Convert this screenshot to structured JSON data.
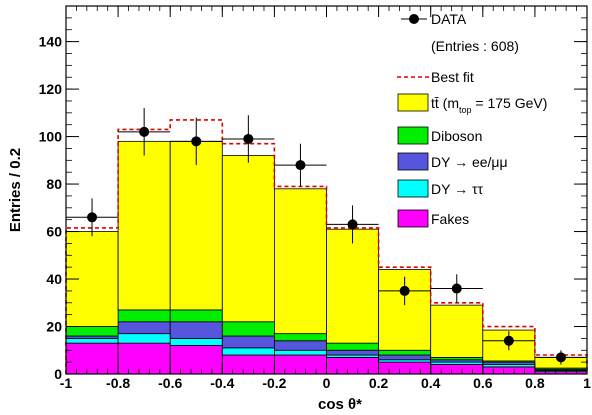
{
  "chart_data": {
    "type": "bar",
    "title": "",
    "xlabel": "cos θ*",
    "ylabel": "Entries / 0.2",
    "xlim": [
      -1,
      1
    ],
    "ylim": [
      0,
      155
    ],
    "x_ticks": [
      -1,
      -0.8,
      -0.6,
      -0.4,
      -0.2,
      0,
      0.2,
      0.4,
      0.6,
      0.8,
      1
    ],
    "x_tick_labels": [
      "-1",
      "-0.8",
      "-0.6",
      "-0.4",
      "-0.2",
      "0",
      "0.2",
      "0.4",
      "0.6",
      "0.8",
      "1"
    ],
    "y_ticks": [
      0,
      20,
      40,
      60,
      80,
      100,
      120,
      140
    ],
    "y_tick_labels": [
      "0",
      "20",
      "40",
      "60",
      "80",
      "100",
      "120",
      "140"
    ],
    "bin_edges": [
      -1,
      -0.8,
      -0.6,
      -0.4,
      -0.2,
      0,
      0.2,
      0.4,
      0.6,
      0.8,
      1
    ],
    "stacked_series": [
      {
        "name": "Fakes",
        "color": "#ff00ff",
        "values": [
          13,
          13,
          12,
          8,
          8,
          7,
          5,
          4,
          3,
          1
        ]
      },
      {
        "name": "DY → ττ",
        "color": "#00ffff",
        "values": [
          2,
          4,
          3,
          3,
          2,
          1,
          1,
          1,
          1,
          0.5
        ]
      },
      {
        "name": "DY → ee/μμ",
        "color": "#5555dd",
        "values": [
          1,
          5,
          7,
          5,
          4,
          2,
          2,
          1,
          1,
          0.5
        ]
      },
      {
        "name": "Diboson",
        "color": "#00ee00",
        "values": [
          4,
          5,
          5,
          6,
          3,
          3,
          2,
          1,
          0.5,
          0.5
        ]
      },
      {
        "name": "tt̄ (m_top = 175 GeV)",
        "color": "#ffff00",
        "values": [
          40,
          71,
          71,
          70,
          61,
          48,
          34,
          22,
          13,
          4.5
        ]
      }
    ],
    "best_fit": {
      "name": "Best fit",
      "color": "#dd0000",
      "values": [
        61.5,
        103,
        107,
        97,
        79,
        61.5,
        45,
        30,
        20,
        8
      ]
    },
    "data_points": {
      "name": "DATA",
      "x": [
        -0.9,
        -0.7,
        -0.5,
        -0.3,
        -0.1,
        0.1,
        0.3,
        0.5,
        0.7,
        0.9
      ],
      "y": [
        66,
        102,
        98,
        99,
        88,
        63,
        35,
        36,
        14,
        7
      ],
      "err": [
        8,
        10,
        10,
        10,
        9,
        8,
        6,
        6,
        4,
        3
      ]
    },
    "legend": {
      "position": "top-right",
      "entries": [
        {
          "kind": "marker",
          "text": "DATA"
        },
        {
          "kind": "text",
          "text": "(Entries : 608)"
        },
        {
          "kind": "line",
          "text": "Best fit",
          "color": "#dd0000"
        },
        {
          "kind": "box",
          "text_main": "tt̄ (m",
          "text_sub": "top",
          "text_end": " = 175 GeV)",
          "color": "#ffff00"
        },
        {
          "kind": "box",
          "text": "Diboson",
          "color": "#00ee00"
        },
        {
          "kind": "box",
          "text": "DY → ee/μμ",
          "color": "#5555dd"
        },
        {
          "kind": "box",
          "text": "DY → ττ",
          "color": "#00ffff"
        },
        {
          "kind": "box",
          "text": "Fakes",
          "color": "#ff00ff"
        }
      ]
    }
  }
}
